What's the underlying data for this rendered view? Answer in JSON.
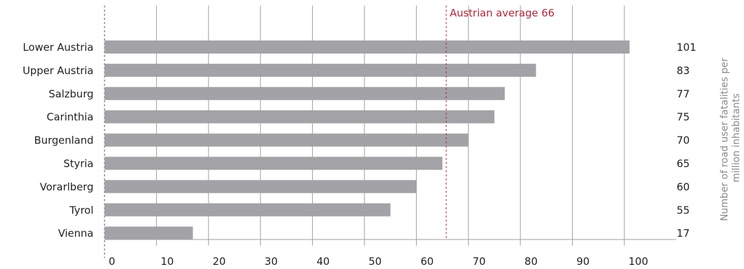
{
  "chart_data": {
    "type": "bar",
    "orientation": "horizontal",
    "categories": [
      "Lower Austria",
      "Upper Austria",
      "Salzburg",
      "Carinthia",
      "Burgenland",
      "Styria",
      "Vorarlberg",
      "Tyrol",
      "Vienna"
    ],
    "values": [
      101,
      83,
      77,
      75,
      70,
      65,
      60,
      55,
      17
    ],
    "value_labels": [
      "101",
      "83",
      "77",
      "75",
      "70",
      "65",
      "60",
      "55",
      "17"
    ],
    "xlim": [
      0,
      110
    ],
    "x_ticks": [
      0,
      10,
      20,
      30,
      40,
      50,
      60,
      70,
      80,
      90,
      100
    ],
    "ylabel_lines": [
      "Number of road user fatalities per",
      "million inhabitants"
    ],
    "reference_line": {
      "value": 66,
      "label": "Austrian average 66"
    },
    "grid": "vertical",
    "colors": {
      "bar": "#a2a2a7",
      "grid": "#9e9e9e",
      "reference": "#b0283c",
      "axis": "#555555"
    }
  }
}
